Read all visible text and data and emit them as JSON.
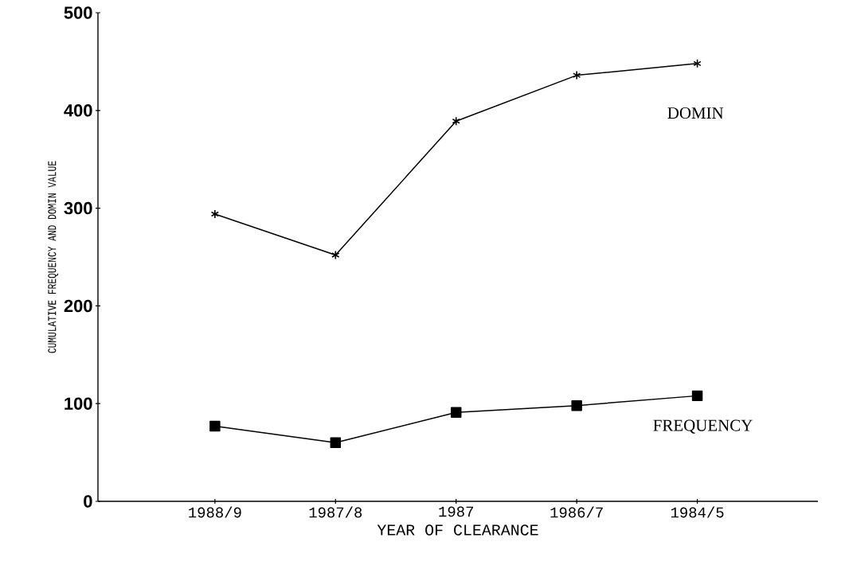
{
  "chart_data": {
    "type": "line",
    "xlabel": "YEAR OF CLEARANCE",
    "ylabel": "CUMULATIVE FREQUENCY AND DOMIN VALUE",
    "categories": [
      "1988/9",
      "1987/8",
      "1987",
      "1986/7",
      "1984/5"
    ],
    "ylim": [
      0,
      500
    ],
    "yticks": [
      0,
      100,
      200,
      300,
      400,
      500
    ],
    "grid": false,
    "line_style": "solid",
    "series": [
      {
        "name": "DOMIN",
        "color": "#000000",
        "marker": "cross",
        "values": [
          294,
          252,
          389,
          436,
          448
        ]
      },
      {
        "name": "FREQUENCY",
        "color": "#000000",
        "marker": "square",
        "values": [
          77,
          60,
          91,
          98,
          108
        ]
      }
    ]
  }
}
